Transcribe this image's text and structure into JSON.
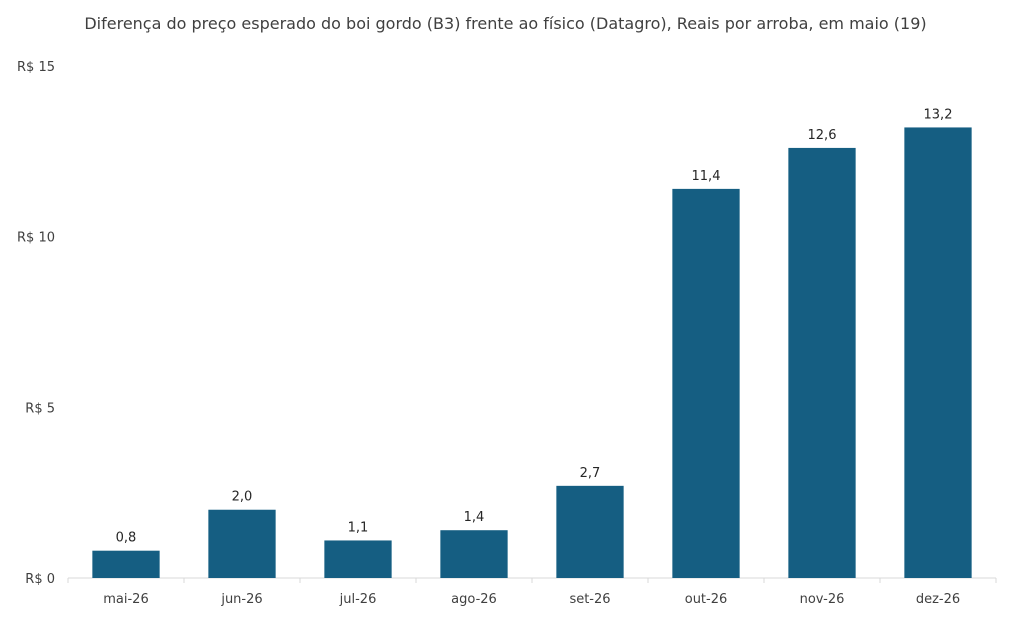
{
  "chart_data": {
    "type": "bar",
    "title": "Diferença do preço esperado do boi gordo (B3) frente ao físico (Datagro), Reais por arroba, em maio (19)",
    "xlabel": "",
    "ylabel": "",
    "categories": [
      "mai-26",
      "jun-26",
      "jul-26",
      "ago-26",
      "set-26",
      "out-26",
      "nov-26",
      "dez-26"
    ],
    "values": [
      0.8,
      2.0,
      1.1,
      1.4,
      2.7,
      11.4,
      12.6,
      13.2
    ],
    "data_labels": [
      "0,8",
      "2,0",
      "1,1",
      "1,4",
      "2,7",
      "11,4",
      "12,6",
      "13,2"
    ],
    "ylim": [
      0,
      15
    ],
    "y_ticks": [
      0,
      5,
      10,
      15
    ],
    "y_tick_labels": [
      "R$ 0",
      "R$ 5",
      "R$ 10",
      "R$ 15"
    ],
    "grid": false,
    "legend": "none",
    "bar_color": "#155e82",
    "axis_color": "#d9d9d9"
  }
}
